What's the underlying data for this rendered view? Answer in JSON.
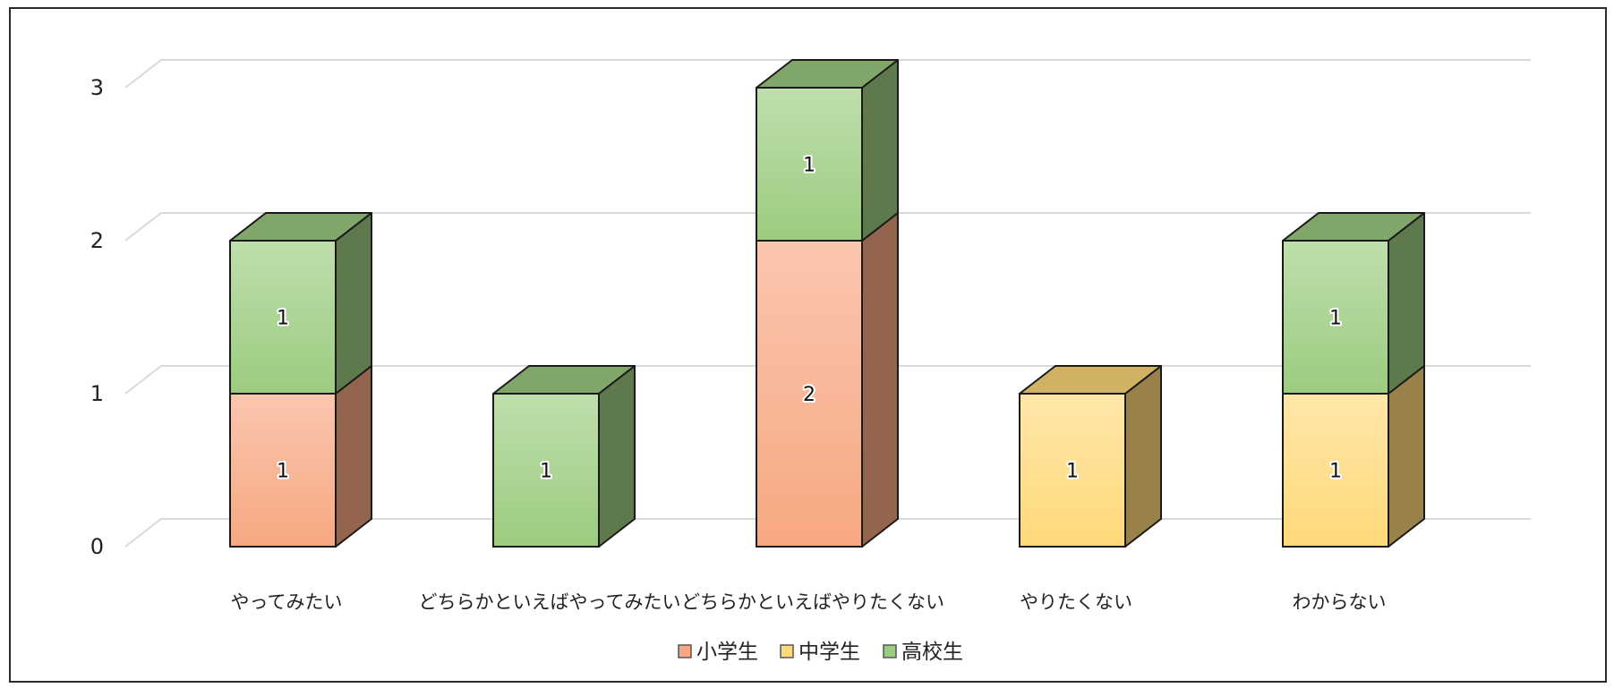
{
  "chart_data": {
    "type": "bar",
    "stacked": true,
    "three_d": true,
    "title": "",
    "xlabel": "",
    "ylabel": "",
    "ylim": [
      0,
      3
    ],
    "yticks": [
      0,
      1,
      2,
      3
    ],
    "grid": true,
    "legend_position": "bottom",
    "categories": [
      "やってみたい",
      "どちらかといえばやってみたい",
      "どちらかといえばやりたくない",
      "やりたくない",
      "わからない"
    ],
    "series": [
      {
        "name": "小学生",
        "values": [
          1,
          0,
          2,
          0,
          0
        ],
        "color": "#f7a882"
      },
      {
        "name": "中学生",
        "values": [
          0,
          0,
          0,
          1,
          1
        ],
        "color": "#ffd97a"
      },
      {
        "name": "高校生",
        "values": [
          1,
          1,
          1,
          0,
          1
        ],
        "color": "#9ccc80"
      }
    ]
  }
}
